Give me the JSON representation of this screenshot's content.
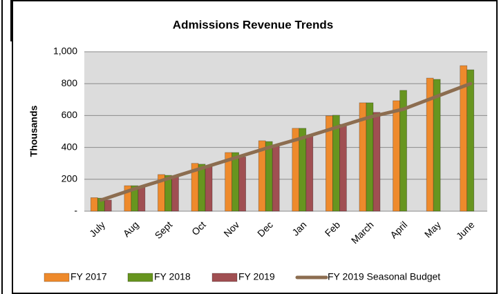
{
  "chart_data": {
    "type": "bar",
    "title": "Admissions  Revenue Trends",
    "y_label": "Thousands",
    "categories": [
      "July",
      "Aug",
      "Sept",
      "Oct",
      "Nov",
      "Dec",
      "Jan",
      "Feb",
      "March",
      "April",
      "May",
      "June"
    ],
    "series": [
      {
        "name": "FY 2017",
        "color": "#ee8a2c",
        "values": [
          85,
          160,
          230,
          300,
          368,
          442,
          520,
          598,
          680,
          693,
          835,
          913
        ]
      },
      {
        "name": "FY 2018",
        "color": "#67951f",
        "values": [
          82,
          160,
          225,
          295,
          368,
          437,
          520,
          602,
          680,
          758,
          827,
          887
        ]
      },
      {
        "name": "FY 2019",
        "color": "#a04f52",
        "values": [
          70,
          155,
          215,
          280,
          340,
          407,
          476,
          545,
          620,
          null,
          null,
          null
        ]
      },
      {
        "name": "FY 2019 Seasonal Budget",
        "type": "line",
        "color": "#8c6d50",
        "values": [
          70,
          140,
          205,
          270,
          335,
          400,
          460,
          525,
          590,
          640,
          720,
          800
        ]
      }
    ],
    "ylim": [
      0,
      1000
    ],
    "yticks": [
      {
        "value": 0,
        "label": "-"
      },
      200,
      400,
      600,
      800,
      {
        "value": 1000,
        "label": "1,000"
      }
    ],
    "grid": true,
    "legend": "bottom"
  }
}
